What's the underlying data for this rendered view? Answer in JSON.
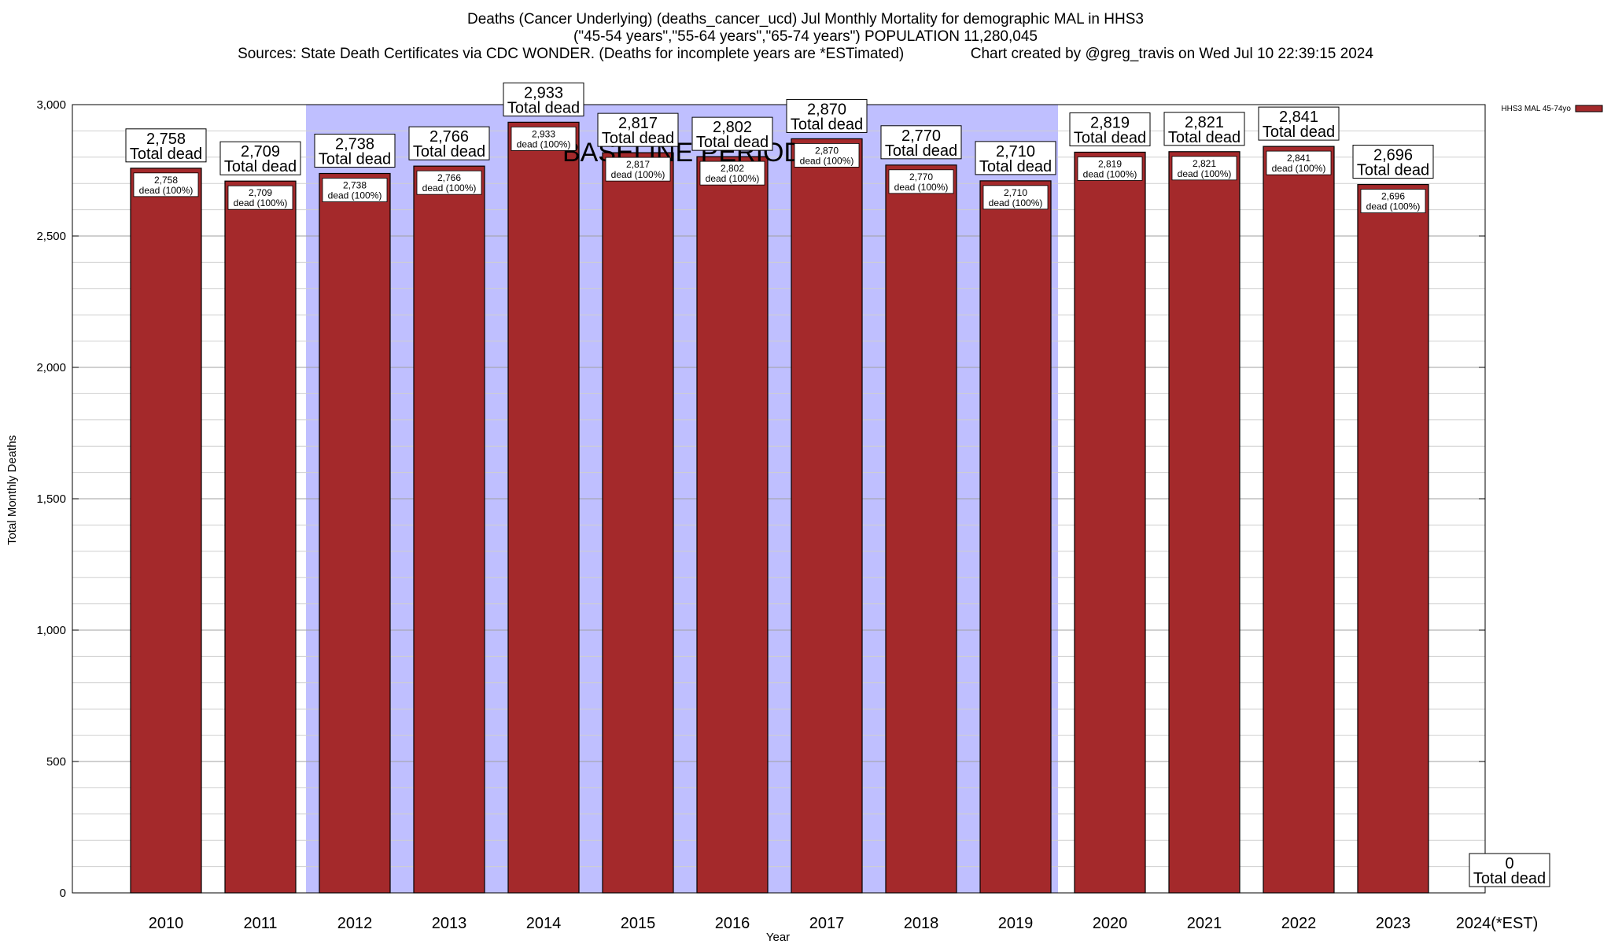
{
  "chart_data": {
    "type": "bar",
    "title_lines": [
      "Deaths (Cancer Underlying) (deaths_cancer_ucd) Jul Monthly Mortality for demographic MAL in HHS3",
      "(\"45-54 years\",\"55-64 years\",\"65-74 years\") POPULATION 11,280,045",
      "Sources: State Death Certificates via CDC WONDER. (Deaths for incomplete years are *ESTimated)                Chart created by @greg_travis on Wed Jul 10 22:39:15 2024"
    ],
    "xlabel": "Year",
    "ylabel": "Total Monthly Deaths",
    "ylim": [
      0,
      3000
    ],
    "y_ticks": [
      0,
      500,
      1000,
      1500,
      2000,
      2500,
      3000
    ],
    "y_tick_labels": [
      "0",
      "500",
      "1,000",
      "1,500",
      "2,000",
      "2,500",
      "3,000"
    ],
    "categories": [
      "2010",
      "2011",
      "2012",
      "2013",
      "2014",
      "2015",
      "2016",
      "2017",
      "2018",
      "2019",
      "2020",
      "2021",
      "2022",
      "2023",
      "2024(*EST)"
    ],
    "series": [
      {
        "name": "HHS3 MAL 45-74yo",
        "color": "#a4292b",
        "values": [
          2758,
          2709,
          2738,
          2766,
          2933,
          2817,
          2802,
          2870,
          2770,
          2710,
          2819,
          2821,
          2841,
          2696,
          0
        ]
      }
    ],
    "top_labels": [
      "2,758",
      "2,709",
      "2,738",
      "2,766",
      "2,933",
      "2,817",
      "2,802",
      "2,870",
      "2,770",
      "2,710",
      "2,819",
      "2,821",
      "2,841",
      "2,696",
      "0"
    ],
    "top_label_suffix": "Total dead",
    "inner_labels": [
      "2,758",
      "2,709",
      "2,738",
      "2,766",
      "2,933",
      "2,817",
      "2,802",
      "2,870",
      "2,770",
      "2,710",
      "2,819",
      "2,821",
      "2,841",
      "2,696"
    ],
    "inner_label_suffix": "dead (100%)",
    "baseline_period": {
      "label": "BASELINE PERIOD",
      "from": "2012",
      "to": "2019",
      "color": "#bfbfff"
    },
    "legend": {
      "label": "HHS3 MAL 45-74yo",
      "position": "top-right"
    },
    "grid": true
  }
}
